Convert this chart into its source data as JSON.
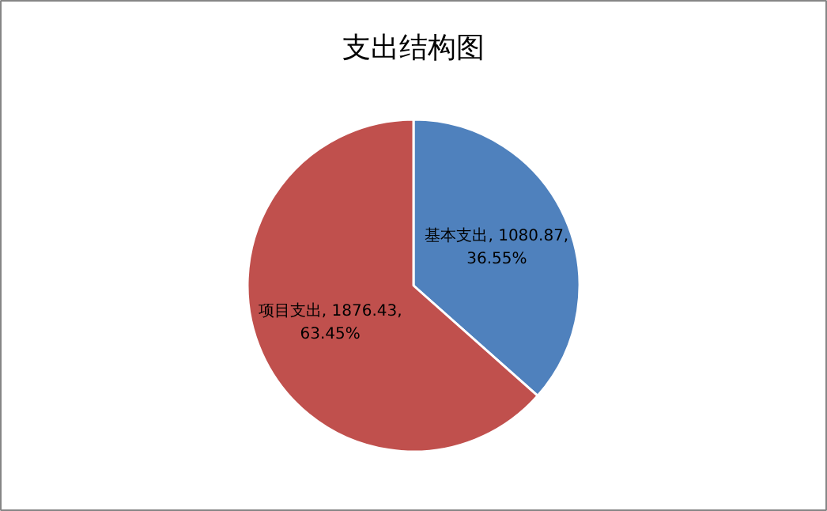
{
  "chart_data": {
    "type": "pie",
    "title": "支出结构图",
    "categories": [
      "基本支出",
      "项目支出"
    ],
    "values": [
      1080.87,
      1876.43
    ],
    "colors": [
      "#4f81bd",
      "#c0504d"
    ],
    "value_labels": [
      "1080.87, 36.55%",
      "1876.43, 63.45%"
    ],
    "legend": false
  }
}
